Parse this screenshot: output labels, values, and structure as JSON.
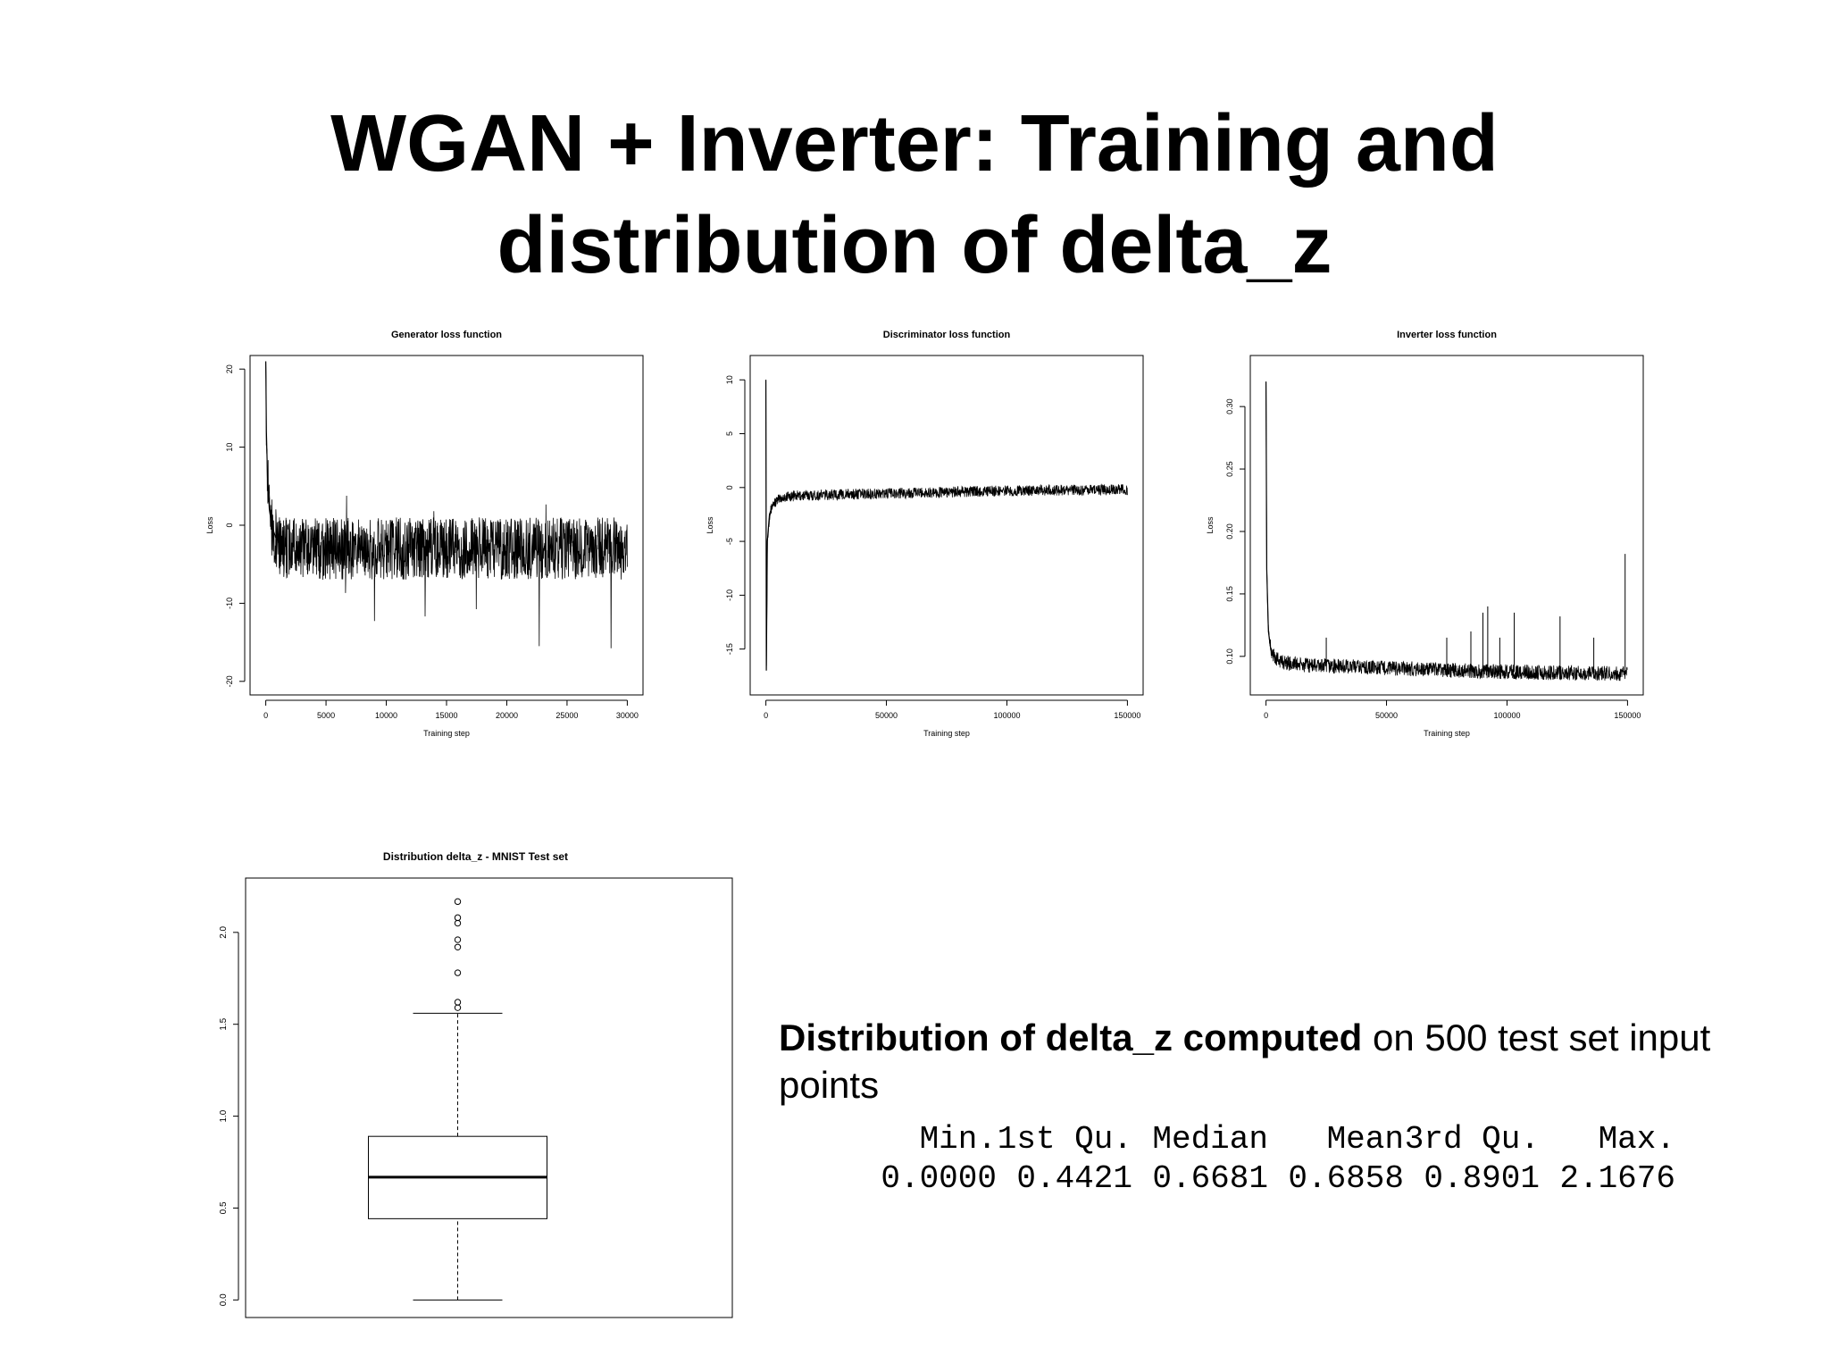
{
  "slide": {
    "title_line1": "WGAN + Inverter: Training and",
    "title_line2": "distribution of delta_z",
    "description_bold": "Distribution of delta_z computed",
    "description_rest": " on 500 test set input points",
    "summary_headers": [
      "Min.",
      "1st Qu.",
      "Median",
      "Mean",
      "3rd Qu.",
      "Max."
    ],
    "summary_values": [
      "0.0000",
      "0.4421",
      "0.6681",
      "0.6858",
      "0.8901",
      "2.1676"
    ]
  },
  "chart_data": [
    {
      "type": "line",
      "title": "Generator loss function",
      "xlabel": "Training step",
      "ylabel": "Loss",
      "xlim": [
        0,
        30000
      ],
      "ylim": [
        -20,
        20
      ],
      "xticks": [
        0,
        5000,
        10000,
        15000,
        20000,
        25000,
        30000
      ],
      "yticks": [
        -20,
        -10,
        0,
        10,
        20
      ],
      "series": [
        {
          "x": [
            0,
            50,
            150,
            300,
            500,
            800,
            1200,
            2000,
            3000,
            5000,
            7500,
            10000,
            12500,
            15000,
            17500,
            20000,
            22500,
            25000,
            27500,
            30000
          ],
          "y": [
            21,
            12,
            6,
            2,
            0,
            -1.5,
            -2.5,
            -3,
            -3,
            -3,
            -3,
            -3,
            -3,
            -3,
            -3,
            -3,
            -3,
            -3,
            -3,
            -3
          ],
          "spread": [
            0,
            4,
            4,
            4,
            4,
            4,
            4,
            4,
            4,
            4,
            4,
            4,
            4,
            4,
            4,
            4,
            4,
            4,
            4,
            4
          ],
          "y_max_spike": 8,
          "y_min_spike": -16
        }
      ],
      "color": "#000000"
    },
    {
      "type": "line",
      "title": "Discriminator loss function",
      "xlabel": "Training step",
      "ylabel": "Loss",
      "xlim": [
        0,
        150000
      ],
      "ylim": [
        -18,
        11
      ],
      "xticks": [
        0,
        50000,
        100000,
        150000
      ],
      "yticks": [
        -15,
        -10,
        -5,
        0,
        5,
        10
      ],
      "series": [
        {
          "x": [
            0,
            200,
            600,
            1500,
            3000,
            6000,
            10000,
            20000,
            40000,
            60000,
            80000,
            100000,
            120000,
            150000
          ],
          "y": [
            10,
            -17,
            -5,
            -2.5,
            -1.5,
            -1.0,
            -0.8,
            -0.7,
            -0.6,
            -0.5,
            -0.4,
            -0.3,
            -0.25,
            -0.2
          ],
          "spread": [
            0,
            0,
            0.5,
            0.5,
            0.5,
            0.5,
            0.5,
            0.5,
            0.5,
            0.5,
            0.5,
            0.5,
            0.5,
            0.5
          ]
        }
      ],
      "color": "#000000"
    },
    {
      "type": "line",
      "title": "Inverter loss function",
      "xlabel": "Training step",
      "ylabel": "Loss",
      "xlim": [
        0,
        150000
      ],
      "ylim": [
        0.08,
        0.33
      ],
      "xticks": [
        0,
        50000,
        100000,
        150000
      ],
      "yticks": [
        0.1,
        0.15,
        0.2,
        0.25,
        0.3
      ],
      "series": [
        {
          "x": [
            0,
            300,
            1000,
            2000,
            4000,
            8000,
            15000,
            30000,
            60000,
            90000,
            120000,
            150000
          ],
          "y": [
            0.32,
            0.17,
            0.12,
            0.105,
            0.098,
            0.095,
            0.093,
            0.092,
            0.09,
            0.088,
            0.087,
            0.086
          ],
          "spread": [
            0,
            0,
            0.006,
            0.006,
            0.006,
            0.006,
            0.006,
            0.006,
            0.006,
            0.006,
            0.006,
            0.006
          ],
          "spikes": [
            [
              25000,
              0.115
            ],
            [
              75000,
              0.115
            ],
            [
              85000,
              0.12
            ],
            [
              90000,
              0.135
            ],
            [
              92000,
              0.14
            ],
            [
              97000,
              0.115
            ],
            [
              103000,
              0.135
            ],
            [
              122000,
              0.132
            ],
            [
              136000,
              0.115
            ],
            [
              149000,
              0.182
            ]
          ]
        }
      ],
      "color": "#000000"
    },
    {
      "type": "boxplot",
      "title": "Distribution delta_z - MNIST Test set",
      "ylim": [
        0,
        2.2
      ],
      "yticks": [
        0.0,
        0.5,
        1.0,
        1.5,
        2.0
      ],
      "min": 0.0,
      "q1": 0.4421,
      "median": 0.6681,
      "q3": 0.8901,
      "whisker_high": 1.56,
      "outliers": [
        1.59,
        1.62,
        1.78,
        1.92,
        1.96,
        2.05,
        2.08,
        2.1676
      ]
    }
  ]
}
